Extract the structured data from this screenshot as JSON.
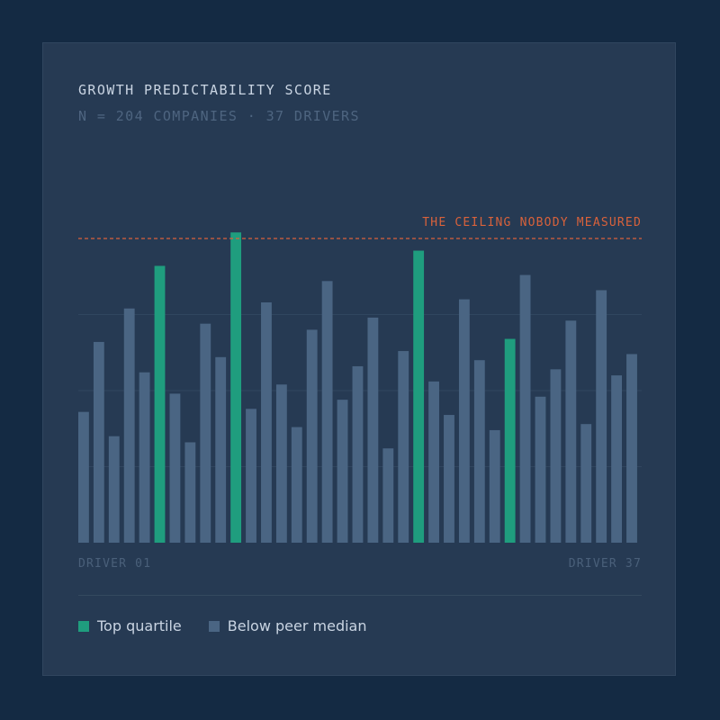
{
  "header": {
    "title": "GROWTH PREDICTABILITY SCORE",
    "subtitle": "N = 204 COMPANIES  ·  37 DRIVERS"
  },
  "colors": {
    "top": "#1f9d7e",
    "below": "#4a6583",
    "ceiling": "#d9623b",
    "grid": "#30465f"
  },
  "chart_data": {
    "type": "bar",
    "title": "GROWTH PREDICTABILITY SCORE",
    "subtitle": "N = 204 COMPANIES  ·  37 DRIVERS",
    "categories_first_label": "DRIVER 01",
    "categories_last_label": "DRIVER 37",
    "ylim": [
      0,
      100
    ],
    "grid": true,
    "values": [
      43,
      66,
      35,
      77,
      56,
      91,
      49,
      33,
      72,
      61,
      102,
      44,
      79,
      52,
      38,
      70,
      86,
      47,
      58,
      74,
      31,
      63,
      96,
      53,
      42,
      80,
      60,
      37,
      67,
      88,
      48,
      57,
      73,
      39,
      83,
      55,
      62
    ],
    "series_flags": [
      "below",
      "below",
      "below",
      "below",
      "below",
      "top",
      "below",
      "below",
      "below",
      "below",
      "top",
      "below",
      "below",
      "below",
      "below",
      "below",
      "below",
      "below",
      "below",
      "below",
      "below",
      "below",
      "top",
      "below",
      "below",
      "below",
      "below",
      "below",
      "top",
      "below",
      "below",
      "below",
      "below",
      "below",
      "below",
      "below",
      "below"
    ],
    "ceiling": {
      "value": 100,
      "label": "THE CEILING NOBODY MEASURED"
    },
    "legend": [
      {
        "label": "Top quartile",
        "key": "top"
      },
      {
        "label": "Below peer median",
        "key": "below"
      }
    ]
  }
}
